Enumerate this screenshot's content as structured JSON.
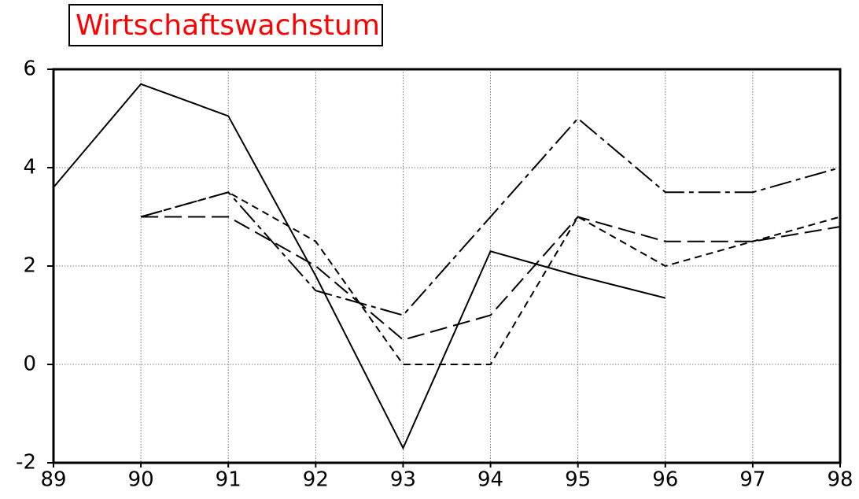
{
  "chart_data": {
    "type": "line",
    "title": "Wirtschaftswachstum",
    "title_color": "#ff0000",
    "categories": [
      "89",
      "90",
      "91",
      "92",
      "93",
      "94",
      "95",
      "96",
      "97",
      "98"
    ],
    "series": [
      {
        "color": "#000000",
        "dash": "solid",
        "values": [
          3.6,
          5.7,
          5.05,
          1.8,
          -1.7,
          2.3,
          1.8,
          1.35,
          null,
          null
        ]
      },
      {
        "color": "#000000",
        "dash": "dash-dot",
        "values": [
          null,
          3,
          3.5,
          1.5,
          1,
          3,
          5,
          3.5,
          3.5,
          4
        ]
      },
      {
        "color": "#000000",
        "dash": "long-dash",
        "values": [
          null,
          3,
          3,
          2,
          0.5,
          1,
          3,
          2.5,
          2.5,
          2.8
        ]
      },
      {
        "color": "#000000",
        "dash": "short-dash",
        "values": [
          null,
          3,
          3.5,
          2.5,
          0,
          0,
          3,
          2,
          2.5,
          3
        ]
      }
    ],
    "ylim": [
      -2,
      6
    ],
    "yticks": [
      -2,
      0,
      2,
      4,
      6
    ],
    "grid": true
  }
}
